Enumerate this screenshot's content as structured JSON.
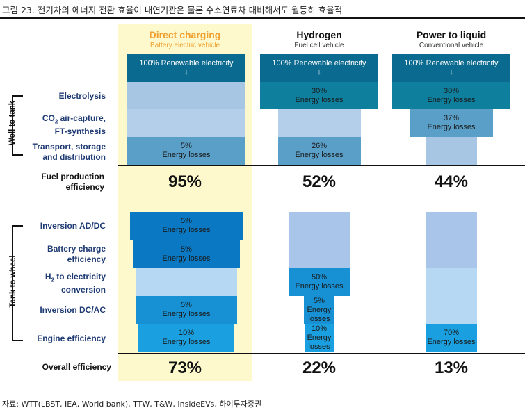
{
  "figure_title": "그림 23. 전기차의 에너지 전환 효율이 내연기관은 물론 수소연료차 대비해서도 월등히 효율적",
  "source": "자료: WTT(LBST, IEA, World bank), TTW, T&W, InsideEVs, 하이투자증권",
  "chart_data": {
    "type": "table",
    "title": "그림 23. 전기차의 에너지 전환 효율이 내연기관은 물론 수소연료차 대비해서도 월등히 효율적",
    "groups": [
      "Well to tank",
      "Tank to wheel"
    ],
    "well_to_tank_steps": [
      {
        "label": "Electrolysis"
      },
      {
        "label_main": "CO",
        "label_sub": "2",
        "label_rest": " air-capture,",
        "label_line2": "FT-synthesis"
      },
      {
        "label_line1": "Transport, storage",
        "label_line2": "and distribution"
      }
    ],
    "tank_to_wheel_steps": [
      {
        "label": "Inversion AD/DC"
      },
      {
        "label_line1": "Battery charge",
        "label_line2": "efficiency"
      },
      {
        "label_main": "H",
        "label_sub": "2",
        "label_rest": " to electricity",
        "label_line2": "conversion"
      },
      {
        "label": "Inversion DC/AC"
      },
      {
        "label": "Engine efficiency"
      }
    ],
    "summary_labels": {
      "fuel_production_line1": "Fuel production",
      "fuel_production_line2": "efficiency",
      "overall": "Overall efficiency"
    },
    "start_label_line1": "100% Renewable electricity",
    "start_label_line2": "↓",
    "loss_word": "Energy losses",
    "series": [
      {
        "name": "Direct charging",
        "subtitle": "Battery electric vehicle",
        "highlight": true,
        "well_to_tank_losses": [
          0,
          0,
          5
        ],
        "well_to_tank_texts": [
          "",
          "",
          "5%"
        ],
        "fuel_production_efficiency": 95,
        "fuel_production_text": "95%",
        "tank_to_wheel_losses": [
          5,
          5,
          0,
          5,
          10
        ],
        "tank_to_wheel_texts": [
          "5%",
          "5%",
          "",
          "5%",
          "10%"
        ],
        "overall_efficiency": 73,
        "overall_text": "73%"
      },
      {
        "name": "Hydrogen",
        "subtitle": "Fuel cell vehicle",
        "highlight": false,
        "well_to_tank_losses": [
          30,
          0,
          26
        ],
        "well_to_tank_texts": [
          "30%",
          "",
          "26%"
        ],
        "fuel_production_efficiency": 52,
        "fuel_production_text": "52%",
        "tank_to_wheel_losses": [
          0,
          0,
          50,
          5,
          10
        ],
        "tank_to_wheel_texts": [
          "",
          "",
          "50%",
          "5%",
          "10%"
        ],
        "overall_efficiency": 22,
        "overall_text": "22%"
      },
      {
        "name": "Power to liquid",
        "subtitle": "Conventional vehicle",
        "highlight": false,
        "well_to_tank_losses": [
          30,
          37,
          0
        ],
        "well_to_tank_texts": [
          "30%",
          "37%",
          ""
        ],
        "fuel_production_efficiency": 44,
        "fuel_production_text": "44%",
        "tank_to_wheel_losses": [
          0,
          0,
          0,
          0,
          70
        ],
        "tank_to_wheel_texts": [
          "",
          "",
          "",
          "",
          "70%"
        ],
        "overall_efficiency": 13,
        "overall_text": "13%"
      }
    ]
  },
  "colors": {
    "renewable": "#0b6a8f",
    "wtt_loss": "#0f7f9e",
    "wtt_loss_light": "#5a9fc8",
    "wtt_pass": "#a7c6e3",
    "wtt_pass_alt": "#b3cfea",
    "ttw_loss": "#0a78c3",
    "ttw_loss_bright": "#1aa0e0",
    "ttw_pass": "#a9c5ea",
    "ttw_pass_light": "#b6d8f2",
    "highlight_bg": "#fdf9cc",
    "accent": "#f0a030",
    "label_blue": "#1f3b73"
  }
}
